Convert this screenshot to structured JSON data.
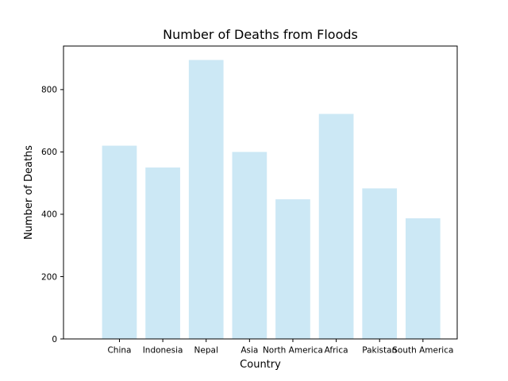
{
  "chart_data": {
    "type": "bar",
    "title": "Number of Deaths from Floods",
    "xlabel": "Country",
    "ylabel": "Number of Deaths",
    "categories": [
      "China",
      "Indonesia",
      "Nepal",
      "Asia",
      "North America",
      "Africa",
      "Pakistan",
      "South America"
    ],
    "values": [
      620,
      550,
      895,
      600,
      448,
      722,
      483,
      387
    ],
    "ylim": [
      0,
      939.75
    ],
    "yticks": [
      0,
      200,
      400,
      600,
      800
    ],
    "grid": false,
    "bar_color": "#cce8f5"
  }
}
